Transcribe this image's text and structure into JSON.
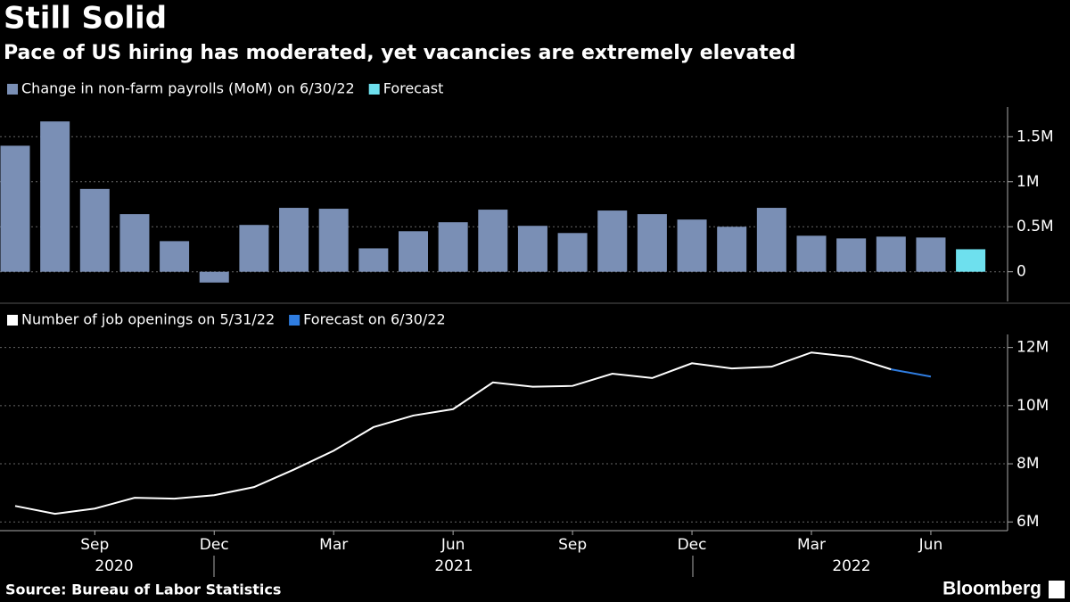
{
  "header": {
    "title": "Still Solid",
    "subtitle": "Pace of US hiring has moderated, yet vacancies are extremely elevated"
  },
  "chart_data": [
    {
      "type": "bar",
      "series": [
        {
          "name": "Change in non-farm payrolls (MoM) on 6/30/22",
          "color": "#7a8fb5",
          "values": [
            1.4,
            1.67,
            0.92,
            0.64,
            0.34,
            -0.12,
            0.52,
            0.71,
            0.7,
            0.26,
            0.45,
            0.55,
            0.69,
            0.51,
            0.43,
            0.68,
            0.64,
            0.58,
            0.5,
            0.71,
            0.4,
            0.37,
            0.39,
            0.38,
            null
          ]
        },
        {
          "name": "Forecast",
          "color": "#6ee0ee",
          "values": [
            null,
            null,
            null,
            null,
            null,
            null,
            null,
            null,
            null,
            null,
            null,
            null,
            null,
            null,
            null,
            null,
            null,
            null,
            null,
            null,
            null,
            null,
            null,
            null,
            0.25
          ]
        }
      ],
      "ylim": [
        -0.33,
        1.83
      ],
      "yticks": [
        0,
        {
          "value": 0.5,
          "label": "0.5M"
        },
        {
          "value": 1,
          "label": "1M"
        },
        {
          "value": 1.5,
          "label": "1.5M"
        }
      ],
      "grid": true
    },
    {
      "type": "line",
      "categories": [
        null,
        null,
        "Sep",
        null,
        null,
        "Dec",
        null,
        null,
        "Mar",
        null,
        null,
        "Jun",
        null,
        null,
        "Sep",
        null,
        null,
        "Dec",
        null,
        null,
        "Mar",
        null,
        null,
        "Jun",
        null
      ],
      "year_labels": [
        "2020",
        "2021",
        "2022"
      ],
      "series": [
        {
          "name": "Number of job openings on 5/31/22",
          "color": "#ffffff",
          "values": [
            6.55,
            6.28,
            6.46,
            6.83,
            6.8,
            6.92,
            7.2,
            7.8,
            8.45,
            9.26,
            9.66,
            9.88,
            10.8,
            10.65,
            10.68,
            11.1,
            10.95,
            11.46,
            11.28,
            11.34,
            11.83,
            11.68,
            11.25,
            null,
            null
          ]
        },
        {
          "name": "Forecast on 6/30/22",
          "color": "#2f7de1",
          "values": [
            null,
            null,
            null,
            null,
            null,
            null,
            null,
            null,
            null,
            null,
            null,
            null,
            null,
            null,
            null,
            null,
            null,
            null,
            null,
            null,
            null,
            null,
            11.25,
            11.0,
            null
          ]
        }
      ],
      "ylim": [
        5.7,
        12.45
      ],
      "yticks": [
        {
          "value": 6,
          "label": "6M"
        },
        {
          "value": 8,
          "label": "8M"
        },
        {
          "value": 10,
          "label": "10M"
        },
        {
          "value": 12,
          "label": "12M"
        }
      ],
      "grid": true
    }
  ],
  "footer": {
    "source": "Source: Bureau of Labor Statistics",
    "brand": "Bloomberg"
  }
}
